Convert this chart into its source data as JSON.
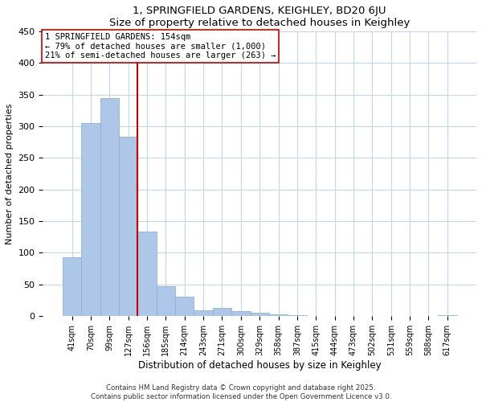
{
  "title": "1, SPRINGFIELD GARDENS, KEIGHLEY, BD20 6JU",
  "subtitle": "Size of property relative to detached houses in Keighley",
  "xlabel": "Distribution of detached houses by size in Keighley",
  "ylabel": "Number of detached properties",
  "bar_labels": [
    "41sqm",
    "70sqm",
    "99sqm",
    "127sqm",
    "156sqm",
    "185sqm",
    "214sqm",
    "243sqm",
    "271sqm",
    "300sqm",
    "329sqm",
    "358sqm",
    "387sqm",
    "415sqm",
    "444sqm",
    "473sqm",
    "502sqm",
    "531sqm",
    "559sqm",
    "588sqm",
    "617sqm"
  ],
  "bar_values": [
    93,
    305,
    344,
    283,
    133,
    47,
    30,
    9,
    13,
    8,
    5,
    2,
    1,
    0,
    0,
    0,
    0,
    0,
    0,
    0,
    1
  ],
  "bar_color": "#aec6e8",
  "bar_edge_color": "#8ab4d8",
  "vline_color": "#cc0000",
  "vline_x_index": 4,
  "ylim": [
    0,
    450
  ],
  "yticks": [
    0,
    50,
    100,
    150,
    200,
    250,
    300,
    350,
    400,
    450
  ],
  "annotation_title": "1 SPRINGFIELD GARDENS: 154sqm",
  "annotation_line1": "← 79% of detached houses are smaller (1,000)",
  "annotation_line2": "21% of semi-detached houses are larger (263) →",
  "annotation_box_color": "#ffffff",
  "annotation_box_edge": "#cc0000",
  "footer1": "Contains HM Land Registry data © Crown copyright and database right 2025.",
  "footer2": "Contains public sector information licensed under the Open Government Licence v3.0.",
  "bg_color": "#ffffff",
  "grid_color": "#c8d4e8"
}
